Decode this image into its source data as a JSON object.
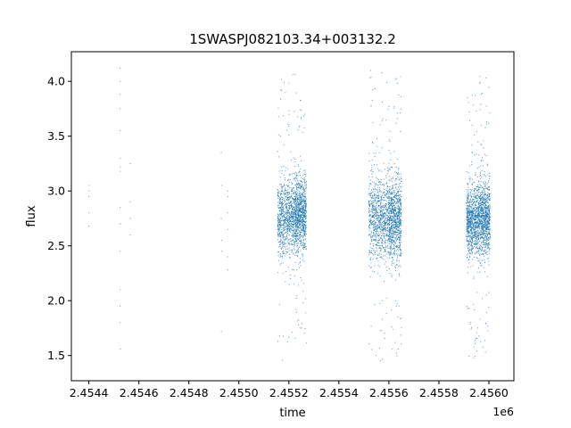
{
  "chart_data": {
    "type": "scatter",
    "title": "1SWASPJ082103.34+003132.2",
    "xlabel": "time",
    "ylabel": "flux",
    "x_offset_label": "1e6",
    "x_scale_factor": 1000000,
    "xlim": [
      2454330,
      2456100
    ],
    "ylim": [
      1.27,
      4.27
    ],
    "xticks": [
      2454400,
      2454600,
      2454800,
      2455000,
      2455200,
      2455400,
      2455600,
      2455800,
      2456000
    ],
    "xtick_labels": [
      "2.4544",
      "2.4546",
      "2.4548",
      "2.4550",
      "2.4552",
      "2.4554",
      "2.4556",
      "2.4558",
      "2.4560"
    ],
    "yticks": [
      1.5,
      2.0,
      2.5,
      3.0,
      3.5,
      4.0
    ],
    "ytick_labels": [
      "1.5",
      "2.0",
      "2.5",
      "3.0",
      "3.5",
      "4.0"
    ],
    "grid": false,
    "marker_color": "#1f77b4",
    "series": [
      {
        "points": [
          [
            2454400,
            3.05
          ],
          [
            2454400,
            2.95
          ],
          [
            2454400,
            2.8
          ],
          [
            2454400,
            2.68
          ],
          [
            2454401,
            3.0
          ],
          [
            2454525,
            4.12
          ],
          [
            2454525,
            4.0
          ],
          [
            2454525,
            3.88
          ],
          [
            2454525,
            3.75
          ],
          [
            2454525,
            3.55
          ],
          [
            2454526,
            3.3
          ],
          [
            2454526,
            3.22
          ],
          [
            2454525,
            3.18
          ],
          [
            2454525,
            2.85
          ],
          [
            2454526,
            2.7
          ],
          [
            2454525,
            2.45
          ],
          [
            2454525,
            2.1
          ],
          [
            2454525,
            1.95
          ],
          [
            2454525,
            1.8
          ],
          [
            2454526,
            1.56
          ],
          [
            2454565,
            3.25
          ],
          [
            2454565,
            2.9
          ],
          [
            2454566,
            2.75
          ],
          [
            2454565,
            2.6
          ],
          [
            2454930,
            3.35
          ],
          [
            2454932,
            3.05
          ],
          [
            2454930,
            2.75
          ],
          [
            2454931,
            2.55
          ],
          [
            2454932,
            2.45
          ],
          [
            2454930,
            1.72
          ],
          [
            2454955,
            3.0
          ],
          [
            2454956,
            2.95
          ],
          [
            2454955,
            2.8
          ],
          [
            2454957,
            2.65
          ],
          [
            2454955,
            2.4
          ],
          [
            2454956,
            2.28
          ]
        ]
      }
    ],
    "dense_clusters": [
      {
        "x_start": 2455155,
        "x_end": 2455225,
        "y_center": 2.75,
        "y_sd": 0.17,
        "outlier_ymin": 1.4,
        "outlier_ymax": 4.1
      },
      {
        "x_start": 2455225,
        "x_end": 2455270,
        "y_center": 2.78,
        "y_sd": 0.17,
        "outlier_ymin": 1.45,
        "outlier_ymax": 3.9
      },
      {
        "x_start": 2455520,
        "x_end": 2455600,
        "y_center": 2.75,
        "y_sd": 0.18,
        "outlier_ymin": 1.42,
        "outlier_ymax": 4.1
      },
      {
        "x_start": 2455600,
        "x_end": 2455650,
        "y_center": 2.75,
        "y_sd": 0.18,
        "outlier_ymin": 1.42,
        "outlier_ymax": 4.05
      },
      {
        "x_start": 2455910,
        "x_end": 2455960,
        "y_center": 2.72,
        "y_sd": 0.16,
        "outlier_ymin": 1.45,
        "outlier_ymax": 3.95
      },
      {
        "x_start": 2455960,
        "x_end": 2456005,
        "y_center": 2.75,
        "y_sd": 0.16,
        "outlier_ymin": 1.5,
        "outlier_ymax": 4.05
      }
    ]
  }
}
